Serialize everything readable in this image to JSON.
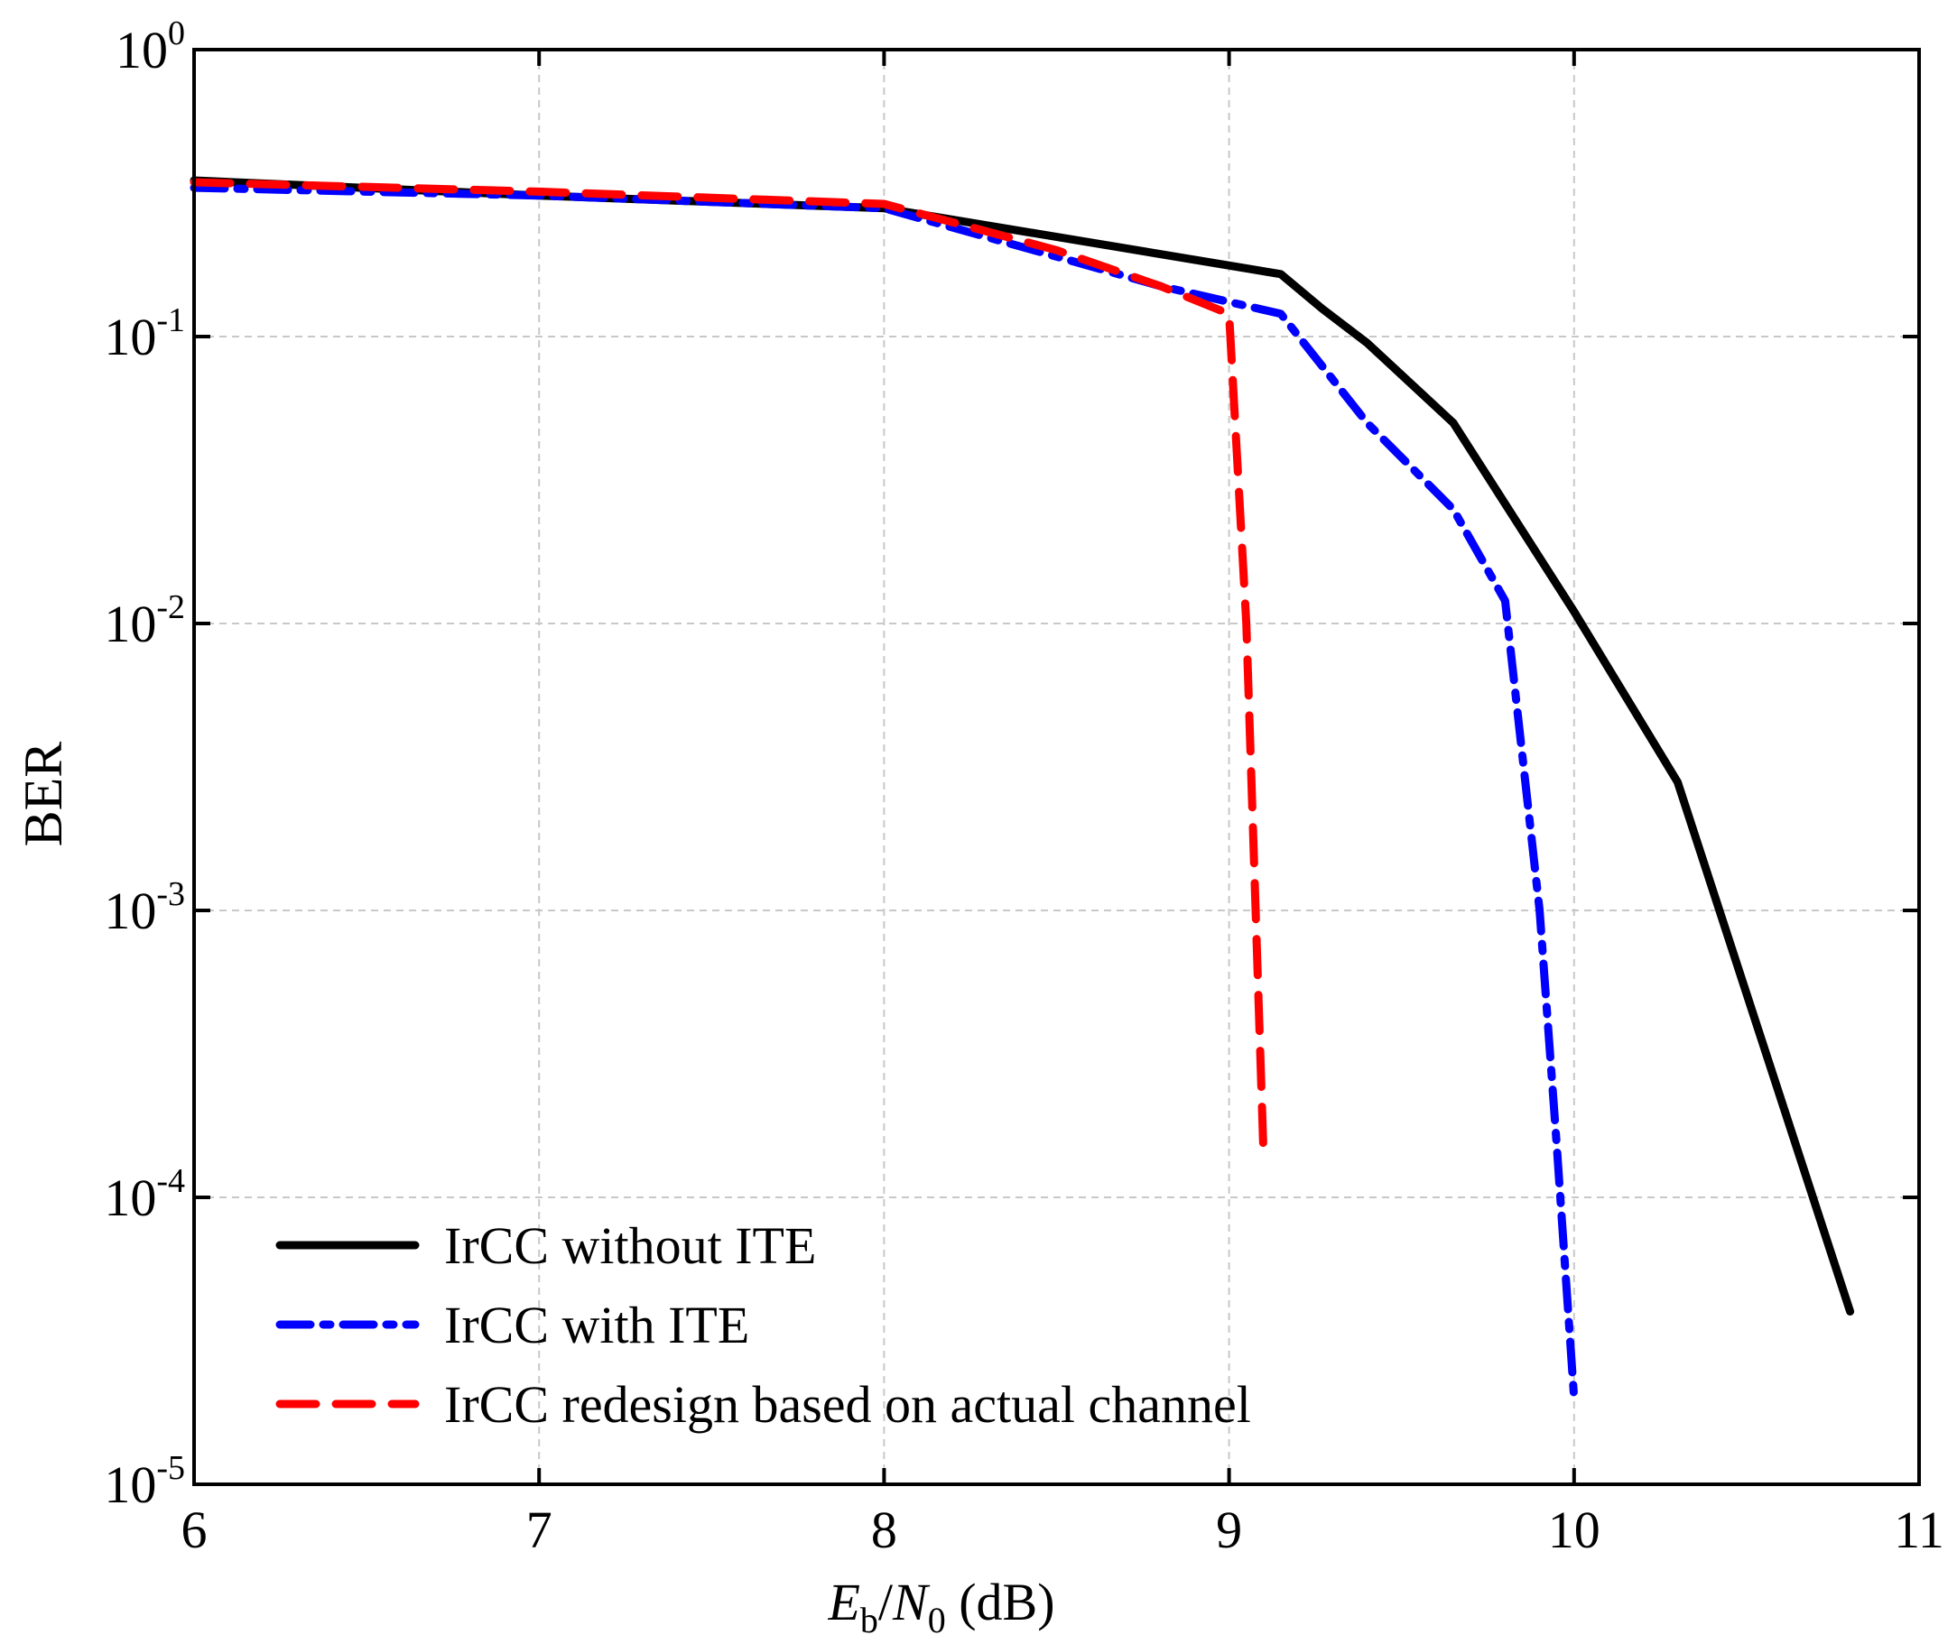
{
  "chart_data": {
    "type": "line",
    "title": "",
    "xlabel": {
      "main": "E",
      "sub1": "b",
      "slash": "/",
      "main2": "N",
      "sub2": "0",
      "unit": " (dB)"
    },
    "ylabel": "BER",
    "xlim": [
      6,
      11
    ],
    "ylim": [
      1e-05,
      1
    ],
    "yscale": "log",
    "grid": true,
    "x_ticks": [
      6,
      7,
      8,
      9,
      10,
      11
    ],
    "x_tick_labels": [
      "6",
      "7",
      "8",
      "9",
      "10",
      "11"
    ],
    "y_ticks": [
      {
        "value": 1,
        "base": "10",
        "exp": "0"
      },
      {
        "value": 0.1,
        "base": "10",
        "exp": "-1"
      },
      {
        "value": 0.01,
        "base": "10",
        "exp": "-2"
      },
      {
        "value": 0.001,
        "base": "10",
        "exp": "-3"
      },
      {
        "value": 0.0001,
        "base": "10",
        "exp": "-4"
      },
      {
        "value": 1e-05,
        "base": "10",
        "exp": "-5"
      }
    ],
    "legend_position": "bottom-left",
    "series": [
      {
        "name": "IrCC without ITE",
        "color": "#000000",
        "style": "solid",
        "x": [
          6,
          7,
          8,
          9.15,
          9.27,
          9.4,
          9.65,
          10,
          10.3,
          10.8
        ],
        "y": [
          0.35,
          0.31,
          0.28,
          0.165,
          0.125,
          0.095,
          0.05,
          0.011,
          0.0028,
          4e-05
        ]
      },
      {
        "name": "IrCC with ITE",
        "color": "#0000ff",
        "style": "dashdot",
        "x": [
          6,
          7,
          8,
          8.5,
          8.8,
          9.15,
          9.4,
          9.65,
          9.8,
          9.9,
          9.95,
          10
        ],
        "y": [
          0.33,
          0.31,
          0.28,
          0.19,
          0.15,
          0.12,
          0.05,
          0.025,
          0.012,
          0.001,
          0.00015,
          2e-05
        ]
      },
      {
        "name": "IrCC redesign based on actual channel",
        "color": "#ff0000",
        "style": "dashed",
        "x": [
          6,
          7,
          8,
          8.5,
          8.8,
          9.0,
          9.05,
          9.1
        ],
        "y": [
          0.345,
          0.32,
          0.29,
          0.2,
          0.15,
          0.12,
          0.01,
          0.00014
        ]
      }
    ]
  }
}
